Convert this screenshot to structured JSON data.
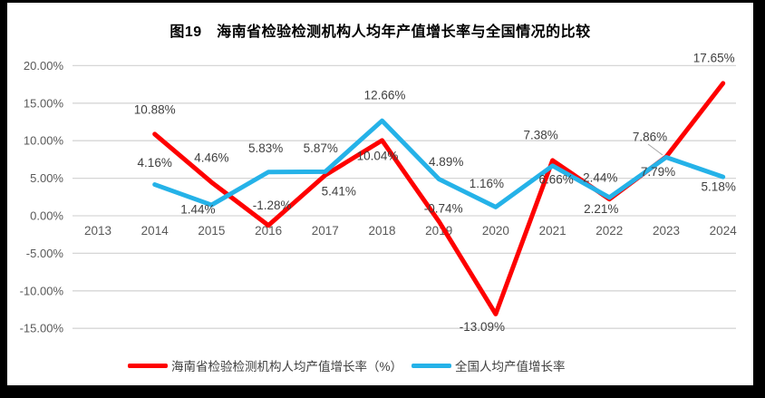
{
  "title": "图19　海南省检验检测机构人均年产值增长率与全国情况的比较",
  "colors": {
    "hainan_red": "#FE0000",
    "national_blue": "#25B2E8",
    "gridline": "#D6D6D6",
    "axis_text": "#595959",
    "data_label_text": "#3F3F3F",
    "title_text": "#000000",
    "frame_border": "#000000",
    "background": "#FFFFFF"
  },
  "chart_data": {
    "type": "line",
    "title": "图19　海南省检验检测机构人均年产值增长率与全国情况的比较",
    "categories": [
      "2013",
      "2014",
      "2015",
      "2016",
      "2017",
      "2018",
      "2019",
      "2020",
      "2021",
      "2022",
      "2023",
      "2024"
    ],
    "series": [
      {
        "name": "海南省检验检测机构人均产值增长率（%）",
        "color_key": "hainan_red",
        "values": [
          null,
          10.88,
          4.46,
          -1.28,
          5.41,
          10.04,
          -0.74,
          -13.09,
          7.38,
          2.21,
          7.86,
          17.65
        ]
      },
      {
        "name": "全国人均产值增长率",
        "color_key": "national_blue",
        "values": [
          null,
          4.16,
          1.44,
          5.83,
          5.87,
          12.66,
          4.89,
          1.16,
          6.66,
          2.44,
          7.79,
          5.18
        ]
      }
    ],
    "ylim": [
      -15,
      20
    ],
    "ytick_step": 5,
    "ytick_labels": [
      "20.00%",
      "15.00%",
      "10.00%",
      "5.00%",
      "0.00%",
      "-5.00%",
      "-10.00%",
      "-15.00%"
    ],
    "ytick_values": [
      20,
      15,
      10,
      5,
      0,
      -5,
      -10,
      -15
    ],
    "grid": true,
    "data_labels": true,
    "legend_position": "bottom"
  }
}
